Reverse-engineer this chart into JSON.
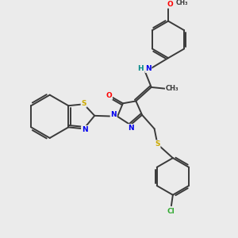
{
  "background_color": "#ebebeb",
  "bond_color": "#3a3a3a",
  "atom_colors": {
    "N": "#0000ee",
    "O": "#ff0000",
    "S": "#ccaa00",
    "Cl": "#33aa33",
    "H": "#008888",
    "C": "#3a3a3a"
  },
  "figsize": [
    3.0,
    3.0
  ],
  "dpi": 100
}
